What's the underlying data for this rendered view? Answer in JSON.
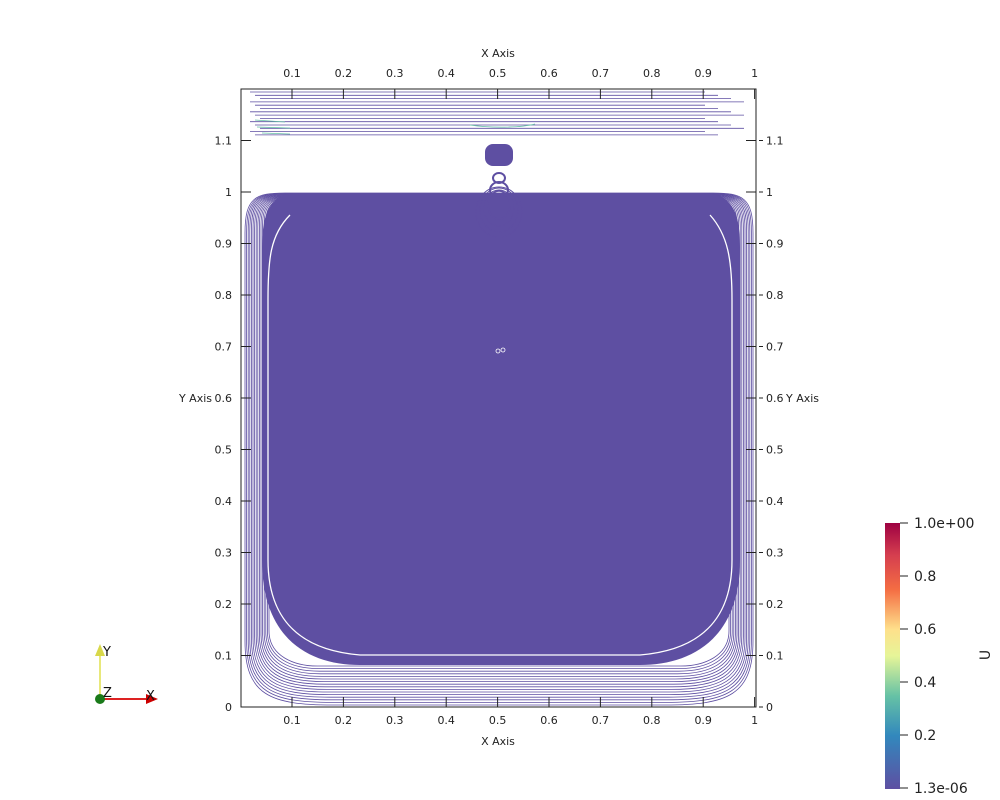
{
  "axes": {
    "x_title_top": "X Axis",
    "x_title_bottom": "X Axis",
    "y_title_left": "Y Axis",
    "y_title_right": "Y Axis",
    "x_ticks": [
      "0.1",
      "0.2",
      "0.3",
      "0.4",
      "0.5",
      "0.6",
      "0.7",
      "0.8",
      "0.9",
      "1"
    ],
    "y_ticks": [
      "0",
      "0.1",
      "0.2",
      "0.3",
      "0.4",
      "0.5",
      "0.6",
      "0.7",
      "0.8",
      "0.9",
      "1",
      "1.1"
    ]
  },
  "colorbar": {
    "title": "U",
    "labels": [
      "1.0e+00",
      "0.8",
      "0.6",
      "0.4",
      "0.2",
      "1.3e-06"
    ],
    "colors": [
      "#9e0142",
      "#f46d43",
      "#fee08b",
      "#e6f598",
      "#66c2a5",
      "#5e4fa2"
    ]
  },
  "orientation": {
    "x_label": "X",
    "y_label": "Y",
    "z_label": "Z"
  },
  "plot": {
    "fill_color": "#5e4fa2",
    "contour_color": "#5e4fa2"
  }
}
